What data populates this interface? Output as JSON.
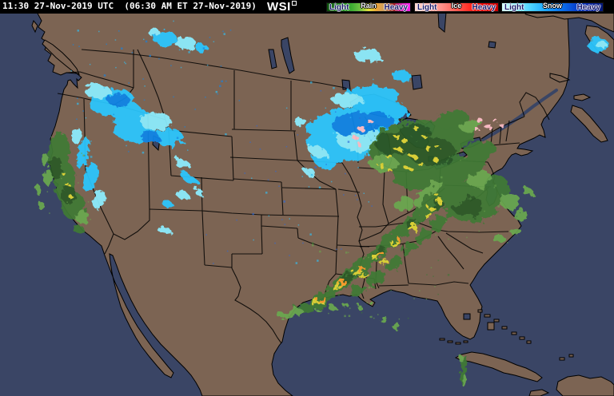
{
  "header": {
    "timestamp": "11:30 27-Nov-2019 UTC  (06:30 AM ET 27-Nov-2019)",
    "logo_text": "WSI",
    "legend": {
      "rain": {
        "label": "Rain",
        "light": "Light",
        "heavy": "Heavy",
        "colors": [
          "#0b4d0b",
          "#177117",
          "#259025",
          "#3fae33",
          "#72c244",
          "#e6e33c",
          "#eca43a",
          "#c79f68",
          "#9c1a1a",
          "#d617b8",
          "#ff22f0"
        ]
      },
      "ice": {
        "label": "Ice",
        "light": "Light",
        "heavy": "Heavy",
        "colors": [
          "#ffd9d4",
          "#ffb3ac",
          "#ff8d85",
          "#ff5e55",
          "#ff2a22",
          "#e60000",
          "#c70000"
        ]
      },
      "snow": {
        "label": "Snow",
        "light": "Light",
        "heavy": "Heavy",
        "colors": [
          "#d8ffff",
          "#8ceeff",
          "#4cd2ff",
          "#1fa8ff",
          "#0b78f0",
          "#0948d0",
          "#0726a8",
          "#041878"
        ]
      }
    }
  },
  "map": {
    "colors": {
      "ocean": "#3a4565",
      "land": "#7c6453",
      "border": "#000000",
      "lake": "#3a4565",
      "snow_light": "#8ceeff",
      "snow": "#2cc8ff",
      "snow_deep": "#0f86ea",
      "rain_light": "#6aa84f",
      "rain": "#3f7a36",
      "rain_dark": "#2a5a28",
      "rain_heavy": "#e0d835",
      "rain_severe": "#ff9e2a",
      "ice": "#ffc0ca"
    },
    "radar_regions": [
      {
        "name": "pacific-northwest-snow",
        "type": "snow",
        "intensity": "light-moderate",
        "area": "NE Oregon / Idaho"
      },
      {
        "name": "montana-snow",
        "type": "snow",
        "intensity": "light",
        "area": "Northern Montana"
      },
      {
        "name": "great-basin-snow",
        "type": "snow",
        "intensity": "moderate",
        "area": "Nevada / Utah / Colorado Rockies"
      },
      {
        "name": "sierra-nevada-snow",
        "type": "snow",
        "intensity": "moderate",
        "area": "Sierra Nevada range"
      },
      {
        "name": "california-coast-rain",
        "type": "rain",
        "intensity": "light-moderate",
        "area": "Northern & Central California coast"
      },
      {
        "name": "upper-midwest-snow",
        "type": "snow",
        "intensity": "moderate-heavy",
        "area": "Minnesota / Wisconsin / Lake Superior / Upper Michigan"
      },
      {
        "name": "great-lakes-rain",
        "type": "rain",
        "intensity": "light-heavy",
        "area": "Lower Michigan / Lake Huron / Southern Ontario / Ohio Valley"
      },
      {
        "name": "transition-ice",
        "type": "ice",
        "intensity": "light",
        "area": "Rain-snow boundary near Minnesota and east of Lake Huron"
      },
      {
        "name": "gulf-squall-line-rain",
        "type": "rain",
        "intensity": "moderate-heavy",
        "area": "Texas Gulf Coast through Louisiana / Mississippi / Alabama / Tennessee / Appalachians"
      },
      {
        "name": "mid-atlantic-rain",
        "type": "rain",
        "intensity": "light-moderate",
        "area": "Virginia / West Virginia / Maryland / Delmarva and offshore Atlantic"
      },
      {
        "name": "cuba-rain",
        "type": "rain",
        "intensity": "light",
        "area": "Central Cuba"
      },
      {
        "name": "newfoundland-snow",
        "type": "snow",
        "intensity": "moderate",
        "area": "Newfoundland"
      }
    ]
  }
}
